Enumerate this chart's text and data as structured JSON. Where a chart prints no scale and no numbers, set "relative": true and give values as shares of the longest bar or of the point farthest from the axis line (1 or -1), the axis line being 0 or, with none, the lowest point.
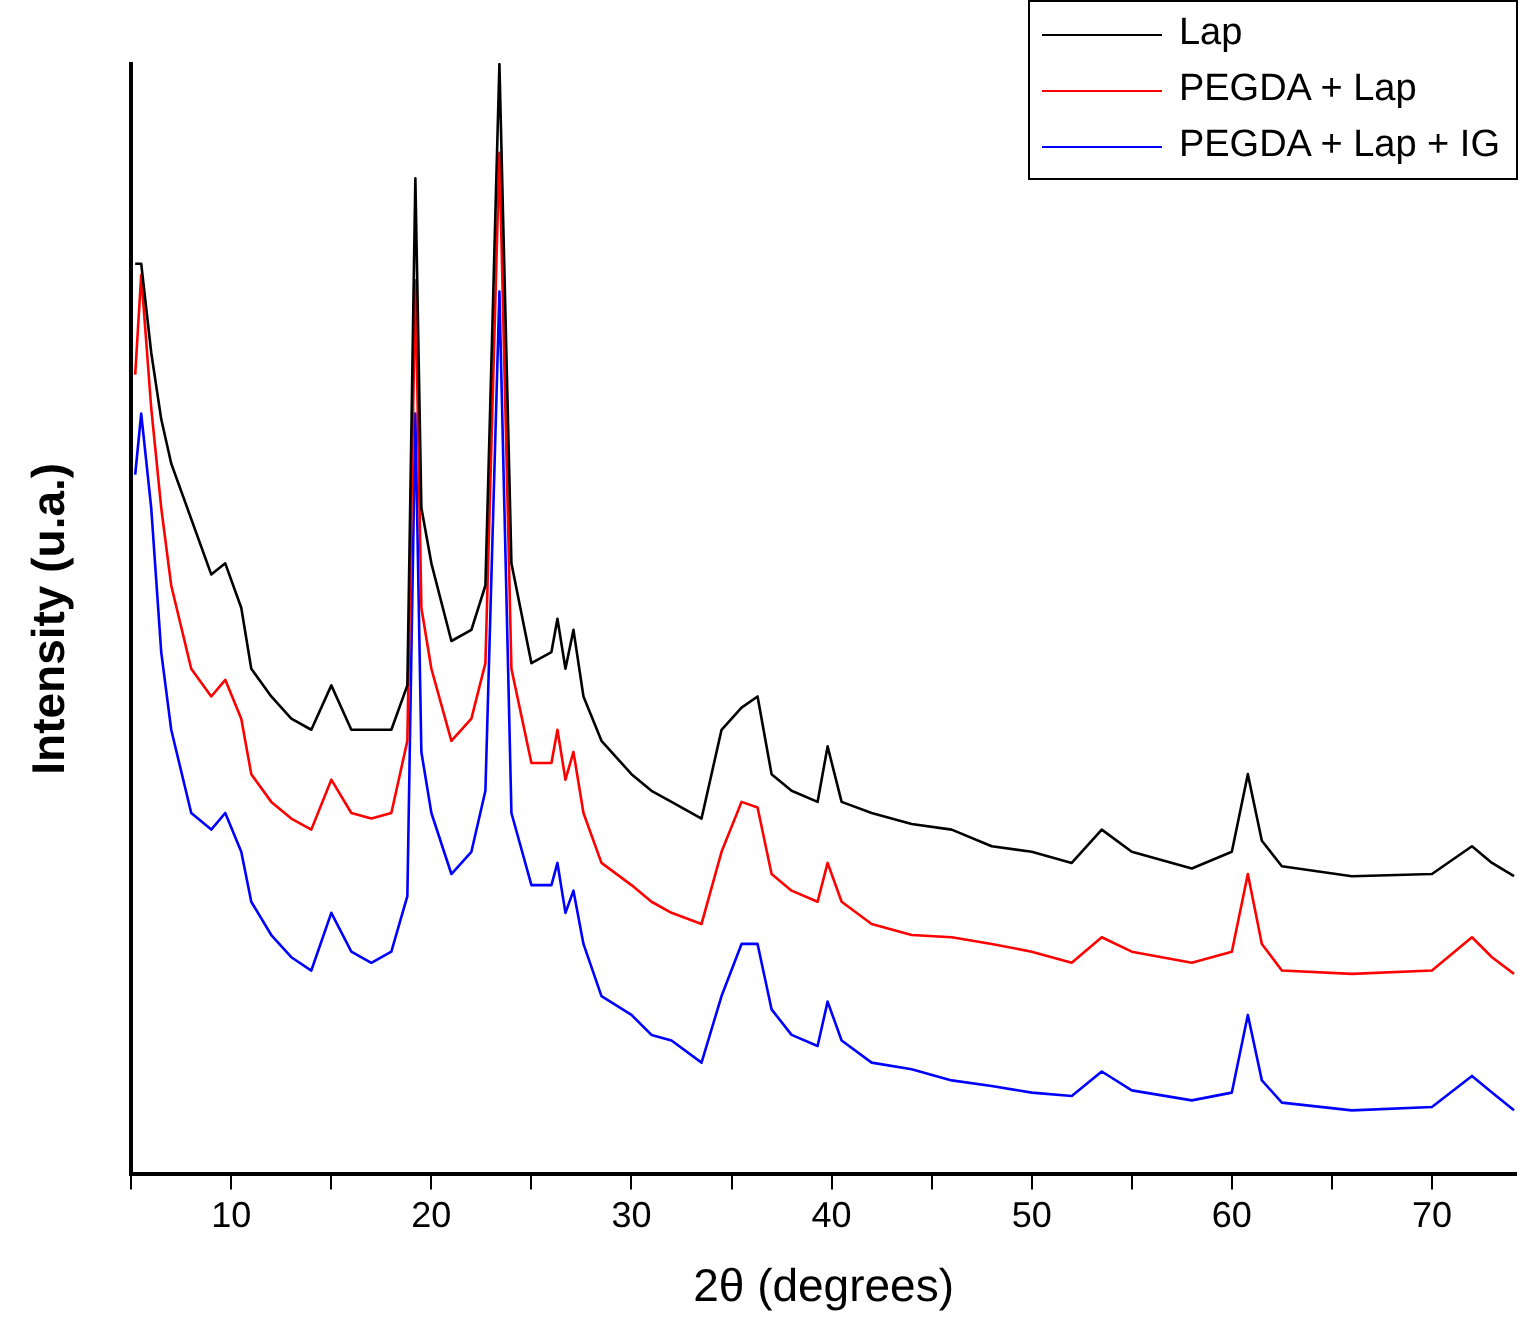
{
  "chart_data": {
    "type": "line",
    "xlabel": "2θ (degrees)",
    "ylabel": "Intensity (u.a.)",
    "relative": true,
    "legend": "top right",
    "marker": "none",
    "grid": false,
    "xlim": [
      5,
      74.2
    ],
    "xticks": [
      {
        "value": 5,
        "label": null
      },
      10,
      {
        "value": 15,
        "label": null
      },
      20,
      {
        "value": 25,
        "label": null
      },
      30,
      {
        "value": 35,
        "label": null
      },
      40,
      {
        "value": 45,
        "label": null
      },
      50,
      {
        "value": 55,
        "label": null
      },
      60,
      {
        "value": 65,
        "label": null
      },
      70
    ],
    "x": [
      5.2,
      5.5,
      6,
      6.5,
      7,
      8,
      9,
      9.7,
      10.5,
      11,
      12,
      13,
      14,
      15,
      16,
      17,
      18,
      18.8,
      19.2,
      19.5,
      20,
      21,
      22,
      22.7,
      23.4,
      24,
      25,
      26,
      26.3,
      26.7,
      27.1,
      27.6,
      28.5,
      30,
      31,
      32,
      33.5,
      34.5,
      35.5,
      36.3,
      37,
      38,
      39.3,
      39.8,
      40.5,
      42,
      44,
      46,
      48,
      50,
      52,
      53.5,
      55,
      58,
      60,
      60.8,
      61.5,
      62.5,
      66,
      70,
      72,
      73,
      74.1
    ],
    "series": [
      {
        "name": "Lap",
        "color": "#000000",
        "values": [
          0.82,
          0.82,
          0.74,
          0.68,
          0.64,
          0.59,
          0.54,
          0.55,
          0.51,
          0.455,
          0.43,
          0.41,
          0.4,
          0.44,
          0.4,
          0.4,
          0.4,
          0.44,
          0.897,
          0.6,
          0.55,
          0.48,
          0.49,
          0.53,
          1.0,
          0.55,
          0.46,
          0.47,
          0.5,
          0.455,
          0.49,
          0.43,
          0.39,
          0.36,
          0.345,
          0.335,
          0.32,
          0.4,
          0.42,
          0.43,
          0.36,
          0.345,
          0.335,
          0.385,
          0.335,
          0.325,
          0.315,
          0.31,
          0.295,
          0.29,
          0.28,
          0.31,
          0.29,
          0.275,
          0.29,
          0.36,
          0.3,
          0.277,
          0.268,
          0.27,
          0.295,
          0.28,
          0.268
        ]
      },
      {
        "name": "PEGDA + Lap",
        "color": "#ff0000",
        "values": [
          0.72,
          0.81,
          0.69,
          0.6,
          0.53,
          0.455,
          0.43,
          0.445,
          0.41,
          0.36,
          0.335,
          0.32,
          0.31,
          0.355,
          0.325,
          0.32,
          0.325,
          0.39,
          0.805,
          0.51,
          0.455,
          0.39,
          0.41,
          0.46,
          0.92,
          0.455,
          0.37,
          0.37,
          0.4,
          0.355,
          0.38,
          0.325,
          0.28,
          0.26,
          0.245,
          0.235,
          0.225,
          0.29,
          0.335,
          0.33,
          0.27,
          0.255,
          0.245,
          0.28,
          0.245,
          0.225,
          0.215,
          0.213,
          0.207,
          0.2,
          0.19,
          0.213,
          0.2,
          0.19,
          0.2,
          0.27,
          0.207,
          0.183,
          0.18,
          0.183,
          0.213,
          0.195,
          0.18
        ]
      },
      {
        "name": "PEGDA + Lap + IG",
        "color": "#0000ff",
        "values": [
          0.63,
          0.685,
          0.6,
          0.47,
          0.4,
          0.325,
          0.31,
          0.325,
          0.29,
          0.245,
          0.215,
          0.195,
          0.183,
          0.235,
          0.2,
          0.19,
          0.2,
          0.25,
          0.685,
          0.38,
          0.325,
          0.27,
          0.29,
          0.345,
          0.795,
          0.325,
          0.26,
          0.26,
          0.28,
          0.235,
          0.255,
          0.207,
          0.16,
          0.143,
          0.125,
          0.12,
          0.1,
          0.16,
          0.207,
          0.207,
          0.148,
          0.125,
          0.115,
          0.155,
          0.12,
          0.1,
          0.094,
          0.084,
          0.079,
          0.073,
          0.07,
          0.092,
          0.075,
          0.066,
          0.073,
          0.143,
          0.084,
          0.064,
          0.057,
          0.06,
          0.088,
          0.073,
          0.057
        ]
      }
    ]
  }
}
